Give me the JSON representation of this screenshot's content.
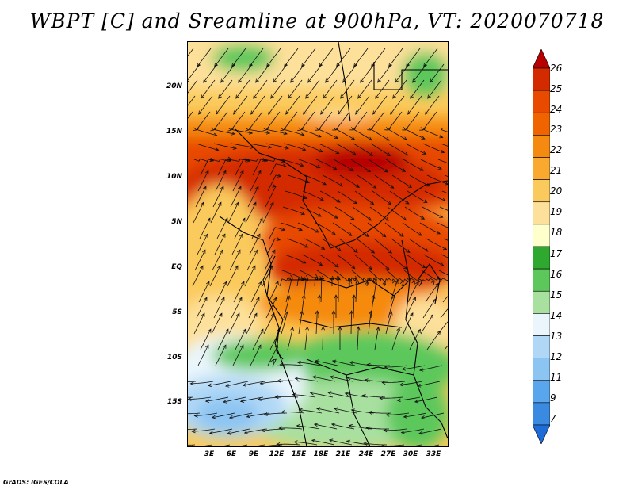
{
  "title": "WBPT [C] and Sreamline at 900hPa, VT: 2020070718",
  "map": {
    "variable": "WBPT [C]",
    "level": "900hPa",
    "valid_time": "2020070718",
    "lat_labels": [
      "20N",
      "15N",
      "10N",
      "5N",
      "EQ",
      "5S",
      "10S",
      "15S"
    ],
    "lon_labels": [
      "3E",
      "6E",
      "9E",
      "12E",
      "15E",
      "18E",
      "21E",
      "24E",
      "27E",
      "30E",
      "33E"
    ]
  },
  "colorbar": {
    "labels": [
      "26",
      "25",
      "24",
      "23",
      "22",
      "21",
      "20",
      "19",
      "18",
      "17",
      "16",
      "15",
      "14",
      "13",
      "12",
      "11",
      "9",
      "7"
    ],
    "colors": [
      "#b80000",
      "#d42a00",
      "#e84a00",
      "#f06400",
      "#f58a10",
      "#f9a830",
      "#fbca5c",
      "#fde09a",
      "#ffffcc",
      "#2ea82e",
      "#5cc85c",
      "#a8e0a0",
      "#eaf6fc",
      "#b0d8f6",
      "#8cc4f2",
      "#5aa6ec",
      "#3a8ae2",
      "#1e6cd8"
    ]
  },
  "credit": "GrADS: IGES/COLA"
}
